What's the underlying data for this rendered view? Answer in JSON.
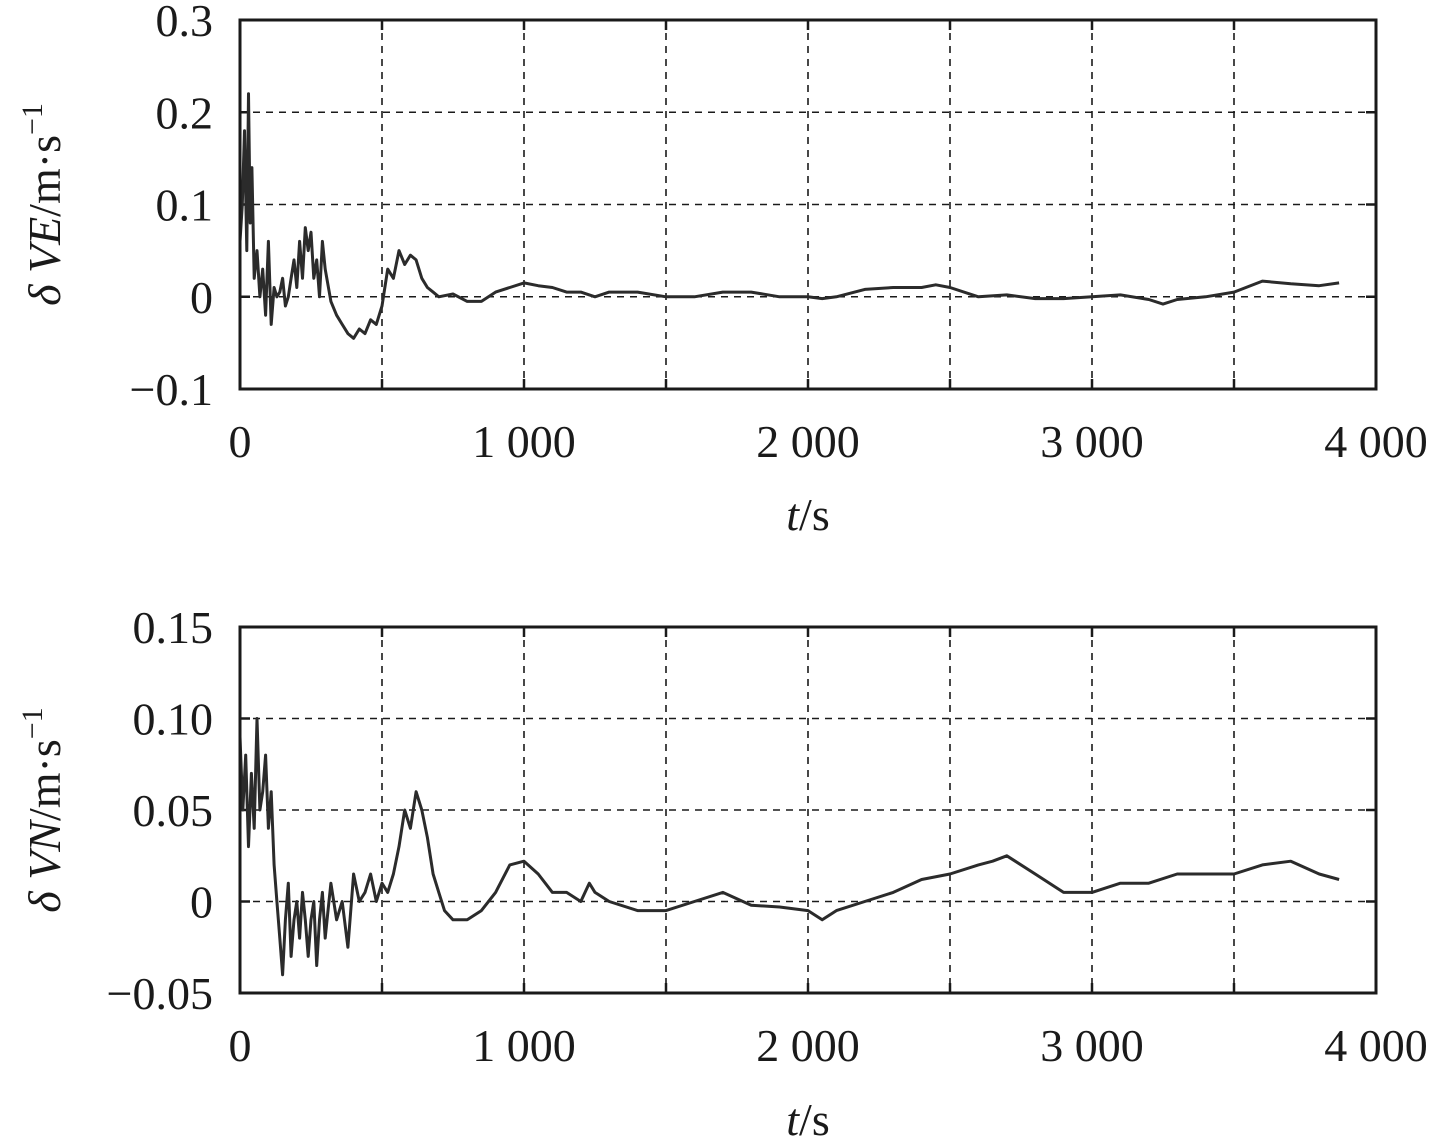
{
  "chart_data": [
    {
      "type": "line",
      "title": "",
      "xlabel": "t/s",
      "ylabel": "δ VE/m·s⁻¹",
      "xlabel_parts": {
        "var": "t",
        "unit": "/s"
      },
      "ylabel_parts": {
        "prefix": "δ ",
        "var": "VE",
        "unit": "/m·s",
        "sup": "−1"
      },
      "xlim": [
        0,
        4000
      ],
      "ylim": [
        -0.1,
        0.3
      ],
      "grid": true,
      "x_ticks": [
        0,
        500,
        1000,
        1500,
        2000,
        2500,
        3000,
        3500,
        4000
      ],
      "x_tick_labels": [
        {
          "value": 0,
          "label": "0"
        },
        {
          "value": 1000,
          "label": "1 000"
        },
        {
          "value": 2000,
          "label": "2 000"
        },
        {
          "value": 3000,
          "label": "3 000"
        },
        {
          "value": 4000,
          "label": "4 000"
        }
      ],
      "y_ticks": [
        {
          "value": -0.1,
          "label": "−0.1"
        },
        {
          "value": 0,
          "label": "0"
        },
        {
          "value": 0.1,
          "label": "0.1"
        },
        {
          "value": 0.2,
          "label": "0.2"
        },
        {
          "value": 0.3,
          "label": "0.3"
        }
      ],
      "series": [
        {
          "color": "#2b2b2b",
          "x": [
            0,
            8,
            16,
            24,
            30,
            36,
            42,
            50,
            60,
            70,
            80,
            90,
            100,
            110,
            120,
            130,
            140,
            150,
            160,
            170,
            180,
            190,
            200,
            210,
            220,
            230,
            240,
            250,
            260,
            270,
            280,
            290,
            300,
            320,
            340,
            360,
            380,
            400,
            420,
            440,
            460,
            480,
            500,
            520,
            540,
            560,
            580,
            600,
            620,
            640,
            660,
            680,
            700,
            750,
            800,
            850,
            900,
            950,
            1000,
            1050,
            1100,
            1150,
            1200,
            1250,
            1300,
            1400,
            1500,
            1600,
            1700,
            1800,
            1900,
            2000,
            2050,
            2100,
            2200,
            2300,
            2400,
            2450,
            2500,
            2600,
            2700,
            2800,
            2900,
            3000,
            3100,
            3200,
            3250,
            3300,
            3400,
            3500,
            3600,
            3700,
            3800,
            3870
          ],
          "y": [
            0.06,
            0.1,
            0.18,
            0.05,
            0.22,
            0.08,
            0.14,
            0.02,
            0.05,
            0.0,
            0.03,
            -0.02,
            0.06,
            -0.03,
            0.01,
            0.0,
            0.005,
            0.02,
            -0.01,
            0.0,
            0.02,
            0.04,
            0.01,
            0.06,
            0.02,
            0.075,
            0.05,
            0.07,
            0.02,
            0.04,
            0.0,
            0.06,
            0.03,
            -0.005,
            -0.02,
            -0.03,
            -0.04,
            -0.045,
            -0.035,
            -0.04,
            -0.025,
            -0.03,
            -0.01,
            0.03,
            0.02,
            0.05,
            0.035,
            0.045,
            0.04,
            0.02,
            0.01,
            0.005,
            0.0,
            0.003,
            -0.005,
            -0.005,
            0.005,
            0.01,
            0.015,
            0.012,
            0.01,
            0.005,
            0.005,
            0.0,
            0.005,
            0.005,
            0.0,
            0.0,
            0.005,
            0.005,
            0.0,
            0.0,
            -0.002,
            0.0,
            0.008,
            0.01,
            0.01,
            0.013,
            0.01,
            0.0,
            0.002,
            -0.002,
            -0.002,
            0.0,
            0.002,
            -0.003,
            -0.008,
            -0.003,
            0.0,
            0.005,
            0.017,
            0.014,
            0.012,
            0.015
          ]
        }
      ]
    },
    {
      "type": "line",
      "title": "",
      "xlabel": "t/s",
      "ylabel": "δ VN/m·s⁻¹",
      "xlabel_parts": {
        "var": "t",
        "unit": "/s"
      },
      "ylabel_parts": {
        "prefix": "δ ",
        "var": "VN",
        "unit": "/m·s",
        "sup": "−1"
      },
      "xlim": [
        0,
        4000
      ],
      "ylim": [
        -0.05,
        0.15
      ],
      "grid": true,
      "x_ticks": [
        0,
        500,
        1000,
        1500,
        2000,
        2500,
        3000,
        3500,
        4000
      ],
      "x_tick_labels": [
        {
          "value": 0,
          "label": "0"
        },
        {
          "value": 1000,
          "label": "1 000"
        },
        {
          "value": 2000,
          "label": "2 000"
        },
        {
          "value": 3000,
          "label": "3 000"
        },
        {
          "value": 4000,
          "label": "4 000"
        }
      ],
      "y_ticks": [
        {
          "value": -0.05,
          "label": "−0.05"
        },
        {
          "value": 0,
          "label": "0"
        },
        {
          "value": 0.05,
          "label": "0.05"
        },
        {
          "value": 0.1,
          "label": "0.10"
        },
        {
          "value": 0.15,
          "label": "0.15"
        }
      ],
      "series": [
        {
          "color": "#2b2b2b",
          "x": [
            0,
            10,
            20,
            30,
            40,
            50,
            60,
            70,
            80,
            90,
            100,
            110,
            120,
            130,
            140,
            150,
            160,
            170,
            180,
            190,
            200,
            210,
            220,
            230,
            240,
            250,
            260,
            270,
            280,
            290,
            300,
            310,
            320,
            340,
            360,
            380,
            400,
            420,
            440,
            460,
            480,
            500,
            520,
            540,
            560,
            580,
            600,
            620,
            640,
            660,
            680,
            700,
            720,
            750,
            800,
            850,
            900,
            950,
            1000,
            1050,
            1100,
            1150,
            1200,
            1230,
            1250,
            1300,
            1400,
            1500,
            1600,
            1700,
            1800,
            1900,
            2000,
            2050,
            2100,
            2200,
            2300,
            2400,
            2500,
            2600,
            2650,
            2700,
            2800,
            2900,
            3000,
            3100,
            3200,
            3300,
            3400,
            3500,
            3600,
            3700,
            3800,
            3870
          ],
          "y": [
            0.09,
            0.05,
            0.08,
            0.03,
            0.07,
            0.04,
            0.1,
            0.05,
            0.06,
            0.08,
            0.04,
            0.06,
            0.02,
            0.0,
            -0.02,
            -0.04,
            -0.01,
            0.01,
            -0.03,
            -0.01,
            0.0,
            -0.02,
            0.005,
            -0.01,
            -0.03,
            -0.01,
            0.0,
            -0.035,
            -0.01,
            0.005,
            -0.02,
            -0.005,
            0.01,
            -0.01,
            0.0,
            -0.025,
            0.015,
            0.0,
            0.005,
            0.015,
            0.0,
            0.01,
            0.005,
            0.015,
            0.03,
            0.05,
            0.04,
            0.06,
            0.05,
            0.035,
            0.015,
            0.005,
            -0.005,
            -0.01,
            -0.01,
            -0.005,
            0.005,
            0.02,
            0.022,
            0.015,
            0.005,
            0.005,
            0.0,
            0.01,
            0.005,
            0.0,
            -0.005,
            -0.005,
            0.0,
            0.005,
            -0.002,
            -0.003,
            -0.005,
            -0.01,
            -0.005,
            0.0,
            0.005,
            0.012,
            0.015,
            0.02,
            0.022,
            0.025,
            0.015,
            0.005,
            0.005,
            0.01,
            0.01,
            0.015,
            0.015,
            0.015,
            0.02,
            0.022,
            0.015,
            0.012
          ]
        }
      ]
    }
  ]
}
